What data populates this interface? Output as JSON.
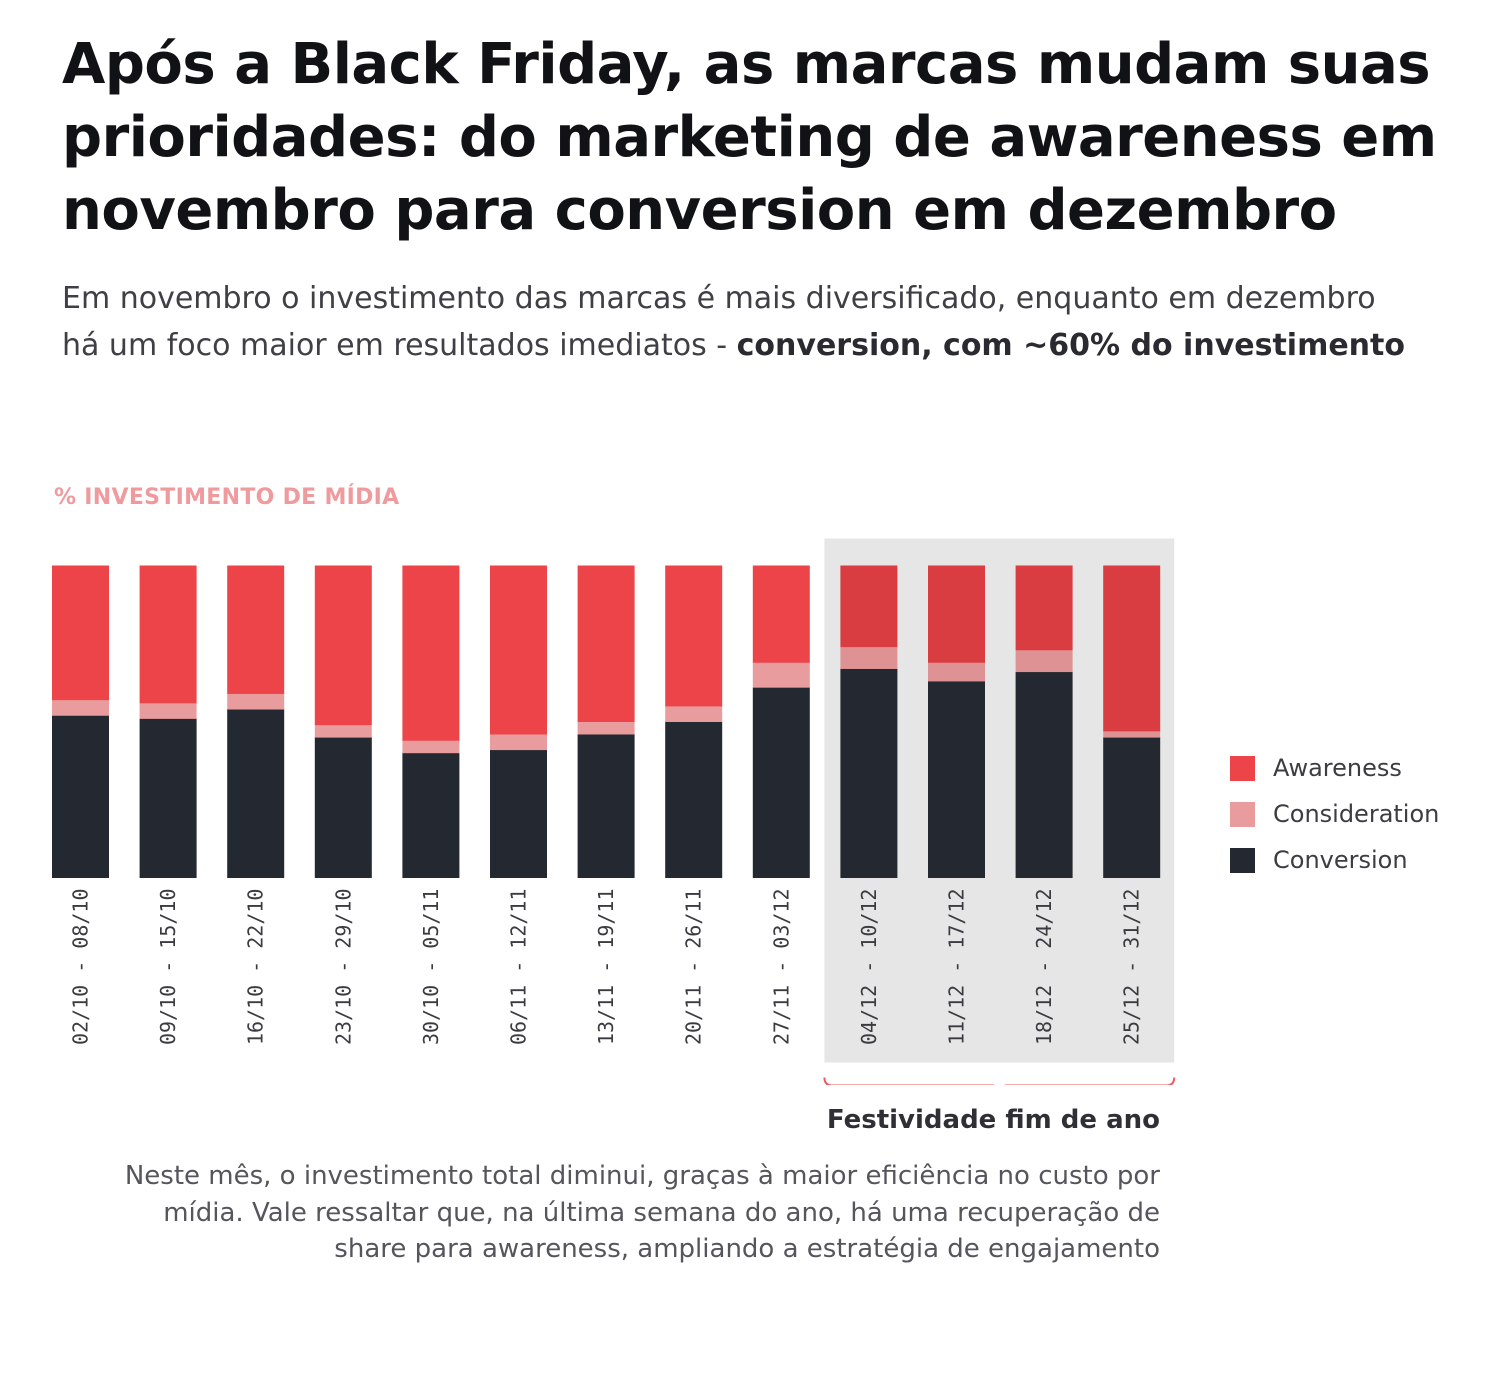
{
  "headline": "Após a Black Friday, as marcas mudam suas prioridades: do marketing de awareness em novembro para conversion em dezembro",
  "subtitle": {
    "text": "Em novembro o investimento das marcas é mais diversificado, enquanto em dezembro há um foco maior em resultados imediatos - ",
    "emphasis": "conversion, com ~60% do investimento"
  },
  "colors": {
    "awareness": "#ec4448",
    "awareness_highlight": "#d93c41",
    "consideration": "#e89c9d",
    "consideration_highlight": "#de9293",
    "conversion": "#242830",
    "highlight_band": "#e6e6e6",
    "bracket": "#ef5a5e"
  },
  "chart_data": {
    "type": "bar",
    "stacked": true,
    "normalized_percent": true,
    "ylabel": "% INVESTIMENTO DE MÍDIA",
    "ylim": [
      0,
      100
    ],
    "categories": [
      "02/10 - 08/10",
      "09/10 - 15/10",
      "16/10 - 22/10",
      "23/10 - 29/10",
      "30/10 - 05/11",
      "06/11 - 12/11",
      "13/11 - 19/11",
      "20/11 - 26/11",
      "27/11 - 03/12",
      "04/12 - 10/12",
      "11/12 - 17/12",
      "18/12 - 24/12",
      "25/12 - 31/12"
    ],
    "series": [
      {
        "name": "Conversion",
        "values": [
          52,
          51,
          54,
          45,
          40,
          41,
          46,
          50,
          61,
          67,
          63,
          66,
          45
        ]
      },
      {
        "name": "Consideration",
        "values": [
          5,
          5,
          5,
          4,
          4,
          5,
          4,
          5,
          8,
          7,
          6,
          7,
          2
        ]
      },
      {
        "name": "Awareness",
        "values": [
          43,
          44,
          41,
          51,
          56,
          54,
          50,
          45,
          31,
          26,
          31,
          27,
          53
        ]
      }
    ],
    "legend": [
      "Awareness",
      "Consideration",
      "Conversion"
    ],
    "legend_position": "right",
    "highlight": {
      "from_category": "04/12 - 10/12",
      "to_category": "25/12 - 31/12",
      "label": "Festividade fim de ano",
      "note": "Neste mês, o investimento total diminui, graças à maior eficiência no custo por mídia. Vale ressaltar que, na última semana do ano, há uma recuperação de share para awareness, ampliando a estratégia de engajamento"
    }
  }
}
